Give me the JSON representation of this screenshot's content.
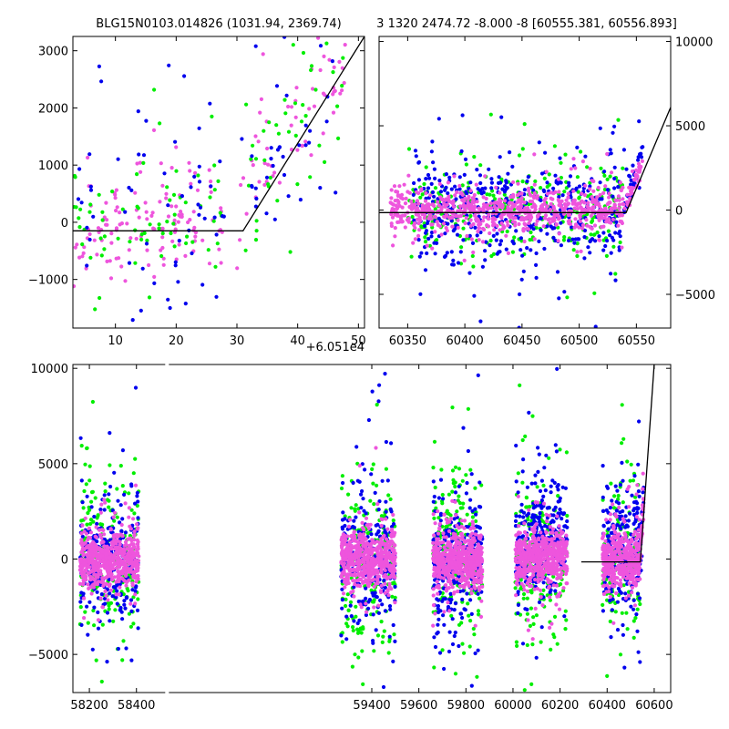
{
  "figure": {
    "title_left": "BLG15N0103.014826 (1031.94, 2369.74)",
    "title_right": "3 1320 2474.72 -8.000 -8 [60555.381, 60556.893]",
    "offset_label": "+6.051e4"
  },
  "colors": {
    "blue": "#0000ee",
    "green": "#00ee00",
    "pink": "#ee55dd",
    "model": "#000000"
  },
  "chart_data": [
    {
      "type": "scatter",
      "panel": "top-left zoom",
      "xlim": [
        3,
        51
      ],
      "ylim": [
        -1850,
        3250
      ],
      "xticks": [
        10,
        20,
        30,
        40,
        50
      ],
      "xtick_labels": [
        "10",
        "20",
        "30",
        "40",
        "50"
      ],
      "yticks": [
        -1000,
        0,
        1000,
        2000,
        3000
      ],
      "ytick_labels": [
        "−1000",
        "0",
        "1000",
        "2000",
        "3000"
      ],
      "x_offset": 60510,
      "ytick_side": "left",
      "model": {
        "x": [
          3,
          31,
          51
        ],
        "y": [
          -150,
          -150,
          3250
        ]
      },
      "series": [
        {
          "color": "pink",
          "clusters": [
            {
              "x": [
                3,
                28
              ],
              "y": [
                -200,
                250
              ],
              "ysd": [
                400,
                420
              ],
              "n": 130
            },
            {
              "x": [
                30,
                48
              ],
              "y": [
                400,
                2900
              ],
              "ysd": [
                450,
                450
              ],
              "n": 60
            }
          ]
        },
        {
          "color": "green",
          "clusters": [
            {
              "x": [
                3,
                28
              ],
              "y": [
                -200,
                300
              ],
              "ysd": [
                500,
                500
              ],
              "n": 70
            },
            {
              "x": [
                30,
                48
              ],
              "y": [
                300,
                2800
              ],
              "ysd": [
                550,
                550
              ],
              "n": 45
            }
          ]
        },
        {
          "color": "blue",
          "clusters": [
            {
              "x": [
                3,
                28
              ],
              "y": [
                0,
                300
              ],
              "ysd": [
                1000,
                1000
              ],
              "n": 60
            },
            {
              "x": [
                30,
                48
              ],
              "y": [
                300,
                2600
              ],
              "ysd": [
                800,
                800
              ],
              "n": 40
            }
          ]
        }
      ]
    },
    {
      "type": "scatter",
      "panel": "top-right",
      "xlim": [
        60325,
        60580
      ],
      "ylim": [
        -7000,
        10300
      ],
      "xticks": [
        60350,
        60400,
        60450,
        60500,
        60550
      ],
      "xtick_labels": [
        "60350",
        "60400",
        "60450",
        "60500",
        "60550"
      ],
      "yticks": [
        -5000,
        0,
        5000,
        10000
      ],
      "ytick_labels": [
        "−5000",
        "0",
        "5000",
        "10000"
      ],
      "ytick_side": "right",
      "model": {
        "x": [
          60325,
          60541,
          60580
        ],
        "y": [
          -150,
          -150,
          6100
        ]
      },
      "series": [
        {
          "color": "green",
          "clusters": [
            {
              "x": [
                60350,
                60540
              ],
              "y": [
                0,
                0
              ],
              "ysd": [
                1300,
                1300
              ],
              "n": 300
            }
          ]
        },
        {
          "color": "blue",
          "clusters": [
            {
              "x": [
                60355,
                60540
              ],
              "y": [
                0,
                0
              ],
              "ysd": [
                1500,
                1500
              ],
              "n": 450
            },
            {
              "x": [
                60541,
                60556
              ],
              "y": [
                400,
                3600
              ],
              "ysd": [
                600,
                600
              ],
              "n": 30
            }
          ]
        },
        {
          "color": "pink",
          "clusters": [
            {
              "x": [
                60335,
                60540
              ],
              "y": [
                0,
                0
              ],
              "ysd": [
                600,
                600
              ],
              "n": 700
            },
            {
              "x": [
                60541,
                60556
              ],
              "y": [
                300,
                3000
              ],
              "ysd": [
                400,
                400
              ],
              "n": 40
            }
          ]
        }
      ]
    },
    {
      "type": "scatter",
      "panel": "bottom full light curve",
      "xlim": [
        58130,
        60670
      ],
      "ylim": [
        -7000,
        10200
      ],
      "xticks": [
        58200,
        58400,
        59400,
        59600,
        59800,
        60000,
        60200,
        60400,
        60600
      ],
      "xtick_labels": [
        "58200",
        "58400",
        "59400",
        "59600",
        "59800",
        "60000",
        "60200",
        "60400",
        "60600"
      ],
      "yticks": [
        -5000,
        0,
        5000,
        10000
      ],
      "ytick_labels": [
        "−5000",
        "0",
        "5000",
        "10000"
      ],
      "ytick_side": "left",
      "axis_break_x": 58530,
      "model": {
        "x": [
          60290,
          60541,
          60600
        ],
        "y": [
          -150,
          -150,
          10200
        ]
      },
      "series": [
        {
          "color": "green",
          "clusters": [
            {
              "x": [
                58160,
                58410
              ],
              "y": [
                0,
                0
              ],
              "ysd": [
                2000,
                2000
              ],
              "n": 200
            },
            {
              "x": [
                59270,
                59500
              ],
              "y": [
                0,
                0
              ],
              "ysd": [
                2000,
                2000
              ],
              "n": 200
            },
            {
              "x": [
                59660,
                59870
              ],
              "y": [
                0,
                0
              ],
              "ysd": [
                2000,
                2000
              ],
              "n": 200
            },
            {
              "x": [
                60010,
                60230
              ],
              "y": [
                0,
                0
              ],
              "ysd": [
                2000,
                2000
              ],
              "n": 200
            },
            {
              "x": [
                60380,
                60540
              ],
              "y": [
                0,
                0
              ],
              "ysd": [
                1800,
                1800
              ],
              "n": 150
            }
          ]
        },
        {
          "color": "blue",
          "clusters": [
            {
              "x": [
                58160,
                58410
              ],
              "y": [
                0,
                0
              ],
              "ysd": [
                1500,
                1500
              ],
              "n": 250
            },
            {
              "x": [
                59270,
                59500
              ],
              "y": [
                0,
                0
              ],
              "ysd": [
                1600,
                1600
              ],
              "n": 260
            },
            {
              "x": [
                59660,
                59870
              ],
              "y": [
                0,
                0
              ],
              "ysd": [
                1800,
                1800
              ],
              "n": 260
            },
            {
              "x": [
                60010,
                60230
              ],
              "y": [
                600,
                1500
              ],
              "ysd": [
                1600,
                1600
              ],
              "n": 260
            },
            {
              "x": [
                60380,
                60540
              ],
              "y": [
                300,
                600
              ],
              "ysd": [
                1500,
                1500
              ],
              "n": 220
            },
            {
              "x": [
                60541,
                60556
              ],
              "y": [
                600,
                3800
              ],
              "ysd": [
                600,
                600
              ],
              "n": 20
            }
          ]
        },
        {
          "color": "pink",
          "clusters": [
            {
              "x": [
                58160,
                58410
              ],
              "y": [
                0,
                0
              ],
              "ysd": [
                700,
                700
              ],
              "n": 550
            },
            {
              "x": [
                59270,
                59500
              ],
              "y": [
                0,
                0
              ],
              "ysd": [
                700,
                700
              ],
              "n": 550
            },
            {
              "x": [
                59660,
                59870
              ],
              "y": [
                0,
                0
              ],
              "ysd": [
                700,
                700
              ],
              "n": 550
            },
            {
              "x": [
                60010,
                60230
              ],
              "y": [
                0,
                0
              ],
              "ysd": [
                700,
                700
              ],
              "n": 550
            },
            {
              "x": [
                60380,
                60540
              ],
              "y": [
                0,
                0
              ],
              "ysd": [
                700,
                700
              ],
              "n": 400
            },
            {
              "x": [
                60541,
                60556
              ],
              "y": [
                500,
                3000
              ],
              "ysd": [
                400,
                400
              ],
              "n": 30
            }
          ]
        }
      ]
    }
  ]
}
